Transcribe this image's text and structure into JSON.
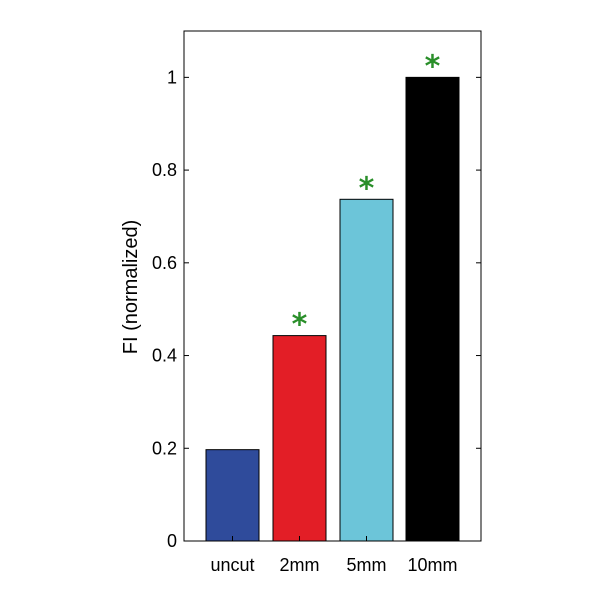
{
  "chart_data": {
    "type": "bar",
    "categories": [
      "uncut",
      "2mm",
      "5mm",
      "10mm"
    ],
    "values": [
      0.197,
      0.443,
      0.737,
      1.0
    ],
    "colors": [
      "#2f4b9b",
      "#e31e26",
      "#6cc5d9",
      "#000000"
    ],
    "significance": [
      "",
      "*",
      "*",
      "*"
    ],
    "significance_color": "#2a8f2a",
    "title": "",
    "xlabel": "",
    "ylabel": "FI (normalized)",
    "ylim": [
      0,
      1.1
    ],
    "yticks": [
      0,
      0.2,
      0.4,
      0.6,
      0.8,
      1
    ],
    "ytick_labels": [
      "0",
      "0.2",
      "0.4",
      "0.6",
      "0.8",
      "1"
    ],
    "grid": false,
    "legend": "none"
  }
}
